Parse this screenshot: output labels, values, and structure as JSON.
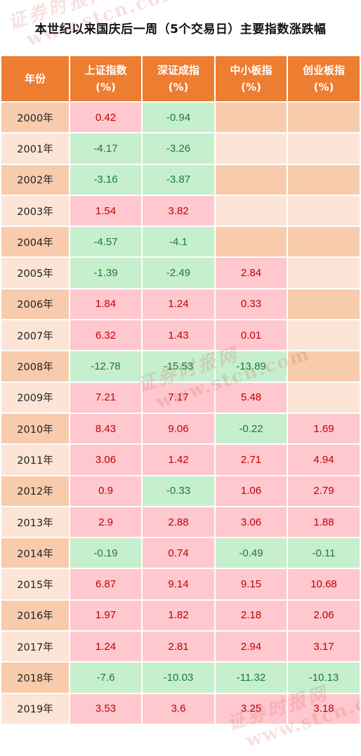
{
  "title": "本世纪以来国庆后一周（5个交易日）主要指数涨跌幅",
  "headers": [
    {
      "line1": "年份",
      "line2": ""
    },
    {
      "line1": "上证指数",
      "line2": "(%)"
    },
    {
      "line1": "深证成指",
      "line2": "(%)"
    },
    {
      "line1": "中小板指",
      "line2": "(%)"
    },
    {
      "line1": "创业板指",
      "line2": "(%)"
    }
  ],
  "rows": [
    {
      "year": "2000年",
      "cells": [
        "0.42",
        "-0.94",
        "",
        ""
      ]
    },
    {
      "year": "2001年",
      "cells": [
        "-4.17",
        "-3.26",
        "",
        ""
      ]
    },
    {
      "year": "2002年",
      "cells": [
        "-3.16",
        "-3.87",
        "",
        ""
      ]
    },
    {
      "year": "2003年",
      "cells": [
        "1.54",
        "3.82",
        "",
        ""
      ]
    },
    {
      "year": "2004年",
      "cells": [
        "-4.57",
        "-4.1",
        "",
        ""
      ]
    },
    {
      "year": "2005年",
      "cells": [
        "-1.39",
        "-2.49",
        "2.84",
        ""
      ]
    },
    {
      "year": "2006年",
      "cells": [
        "1.84",
        "1.24",
        "0.33",
        ""
      ]
    },
    {
      "year": "2007年",
      "cells": [
        "6.32",
        "1.43",
        "0.01",
        ""
      ]
    },
    {
      "year": "2008年",
      "cells": [
        "-12.78",
        "-15.53",
        "-13.89",
        ""
      ]
    },
    {
      "year": "2009年",
      "cells": [
        "7.21",
        "7.17",
        "5.48",
        ""
      ]
    },
    {
      "year": "2010年",
      "cells": [
        "8.43",
        "9.06",
        "-0.22",
        "1.69"
      ]
    },
    {
      "year": "2011年",
      "cells": [
        "3.06",
        "1.42",
        "2.71",
        "4.94"
      ]
    },
    {
      "year": "2012年",
      "cells": [
        "0.9",
        "-0.33",
        "1.06",
        "2.79"
      ]
    },
    {
      "year": "2013年",
      "cells": [
        "2.9",
        "2.88",
        "3.06",
        "1.88"
      ]
    },
    {
      "year": "2014年",
      "cells": [
        "-0.19",
        "0.74",
        "-0.49",
        "-0.11"
      ]
    },
    {
      "year": "2015年",
      "cells": [
        "6.87",
        "9.14",
        "9.15",
        "10.68"
      ]
    },
    {
      "year": "2016年",
      "cells": [
        "1.97",
        "1.82",
        "2.18",
        "2.06"
      ]
    },
    {
      "year": "2017年",
      "cells": [
        "1.24",
        "2.81",
        "2.94",
        "3.17"
      ]
    },
    {
      "year": "2018年",
      "cells": [
        "-7.6",
        "-10.03",
        "-11.32",
        "-10.13"
      ]
    },
    {
      "year": "2019年",
      "cells": [
        "3.53",
        "3.6",
        "3.25",
        "3.18"
      ]
    }
  ],
  "watermark": {
    "cn": "证券时报网",
    "url": "www.stcn.com"
  },
  "colors": {
    "header_bg": "#ED7D31",
    "year_odd_bg": "#F8CBAD",
    "year_even_bg": "#FCE4D6",
    "positive_bg": "#FFC7CE",
    "positive_text": "#C00000",
    "negative_bg": "#C6EFCE",
    "negative_text": "#1E7B34"
  }
}
